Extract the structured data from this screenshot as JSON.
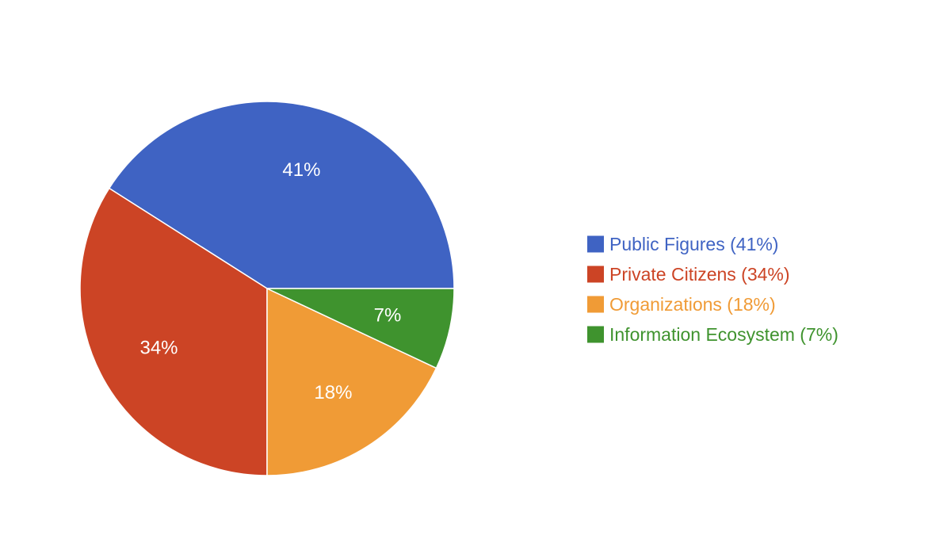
{
  "chart_data": {
    "type": "pie",
    "categories": [
      "Public Figures",
      "Private Citizens",
      "Organizations",
      "Information Ecosystem"
    ],
    "values": [
      41,
      34,
      18,
      7
    ],
    "colors": [
      "#3f63c3",
      "#cc4425",
      "#f09b36",
      "#3f932e"
    ],
    "data_labels": [
      "41%",
      "34%",
      "18%",
      "7%"
    ],
    "legend": [
      "Public Figures (41%)",
      "Private Citizens (34%)",
      "Organizations (18%)",
      "Information Ecosystem (7%)"
    ],
    "legend_position": "right",
    "start_direction": "right",
    "direction": "counterclockwise"
  }
}
